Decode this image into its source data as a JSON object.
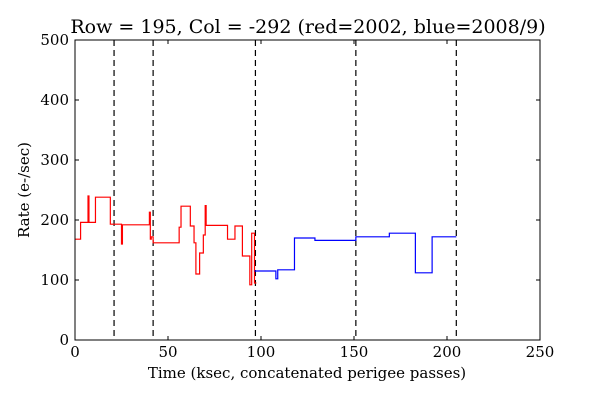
{
  "chart_data": {
    "type": "line",
    "title": "Row = 195, Col = -292 (red=2002, blue=2008/9)",
    "xlabel": "Time (ksec, concatenated perigee passes)",
    "ylabel": "Rate (e-/sec)",
    "xlim": [
      0,
      250
    ],
    "ylim": [
      0,
      500
    ],
    "xticks": [
      "0",
      "50",
      "100",
      "150",
      "200",
      "250"
    ],
    "yticks": [
      "0",
      "100",
      "200",
      "300",
      "400",
      "500"
    ],
    "grid": false,
    "series": [
      {
        "color": "#ff0000",
        "x": [
          0,
          3,
          3,
          7,
          7,
          7.5,
          7.5,
          11,
          11,
          19,
          19,
          25,
          25,
          25.5,
          25.5,
          40,
          40,
          40.5,
          40.5,
          41,
          41,
          42,
          42,
          56,
          56,
          57,
          57,
          62,
          62,
          64,
          64,
          65,
          65,
          67,
          67,
          69,
          69,
          70,
          70,
          70.5,
          70.5,
          82,
          82,
          86,
          86,
          90,
          90,
          94,
          94,
          95,
          95,
          96.5,
          96.5,
          97.5
        ],
        "y": [
          168,
          168,
          196,
          196,
          240,
          240,
          196,
          196,
          238,
          238,
          193,
          193,
          160,
          160,
          192,
          192,
          213,
          213,
          168,
          168,
          172,
          172,
          162,
          162,
          188,
          188,
          223,
          223,
          190,
          190,
          162,
          162,
          110,
          110,
          145,
          145,
          175,
          175,
          224,
          224,
          191,
          191,
          168,
          168,
          190,
          190,
          140,
          140,
          92,
          92,
          178,
          178,
          95,
          95
        ]
      },
      {
        "color": "#0000ff",
        "x": [
          96.5,
          108,
          108,
          109,
          109,
          118,
          118,
          129,
          129,
          151,
          151,
          169,
          169,
          183,
          183,
          192,
          192,
          205
        ],
        "y": [
          115,
          115,
          102,
          102,
          117,
          117,
          170,
          170,
          166,
          166,
          172,
          172,
          178,
          178,
          112,
          112,
          172,
          172
        ]
      }
    ],
    "vlines": [
      21,
      42,
      97,
      151,
      205
    ]
  }
}
